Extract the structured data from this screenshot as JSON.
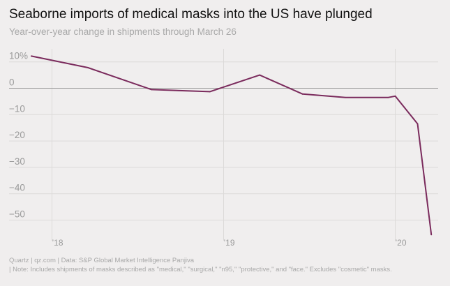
{
  "chart_data": {
    "type": "line",
    "title": "Seaborne imports of medical masks into the US have plunged",
    "subtitle": "Year-over-year change in shipments through March 26",
    "ylim": [
      -57,
      14
    ],
    "y_ticks": [
      {
        "value": 10,
        "label": "10%"
      },
      {
        "value": 0,
        "label": "0"
      },
      {
        "value": -10,
        "label": "−10"
      },
      {
        "value": -20,
        "label": "−20"
      },
      {
        "value": -30,
        "label": "−30"
      },
      {
        "value": -40,
        "label": "−40"
      },
      {
        "value": -50,
        "label": "−50"
      }
    ],
    "xlim": [
      2017.75,
      2020.25
    ],
    "x_ticks": [
      {
        "value": 2018,
        "label": "’18"
      },
      {
        "value": 2019,
        "label": "’19"
      },
      {
        "value": 2020,
        "label": "’20"
      }
    ],
    "series": [
      {
        "name": "Year-over-year change",
        "color": "#7a2a5c",
        "x": [
          2017.88,
          2018.21,
          2018.58,
          2018.92,
          2019.21,
          2019.46,
          2019.71,
          2019.96,
          2020.0,
          2020.13,
          2020.21
        ],
        "y": [
          12.2,
          7.8,
          -0.5,
          -1.3,
          5.0,
          -2.2,
          -3.5,
          -3.5,
          -3.0,
          -13.5,
          -55.5
        ]
      }
    ],
    "colors": {
      "background": "#f0eeee",
      "grid": "#dcdad9",
      "zero_line": "#9a9a9a",
      "tick_text": "#9a9a9a"
    }
  },
  "footer": {
    "source": "Quartz | qz.com | Data: S&P Global Market Intelligence Panjiva",
    "note": "| Note: Includes shipments of masks described as \"medical,\" \"surgical,\" \"n95,\" \"protective,\" and \"face.\" Excludes \"cosmetic\" masks."
  }
}
